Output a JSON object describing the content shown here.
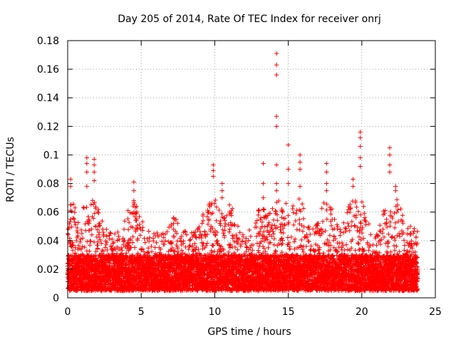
{
  "chart_data": {
    "type": "scatter",
    "title": "Day 205 of 2014, Rate Of TEC Index for receiver onrj",
    "xlabel": "GPS time / hours",
    "ylabel": "ROTI / TECUs",
    "xlim": [
      0,
      25
    ],
    "ylim": [
      0,
      0.18
    ],
    "xticks": [
      0,
      5,
      10,
      15,
      20,
      25
    ],
    "xtick_labels": [
      "0",
      "5",
      "10",
      "15",
      "20",
      "25"
    ],
    "yticks": [
      0,
      0.02,
      0.04,
      0.06,
      0.08,
      0.1,
      0.12,
      0.14,
      0.16,
      0.18
    ],
    "ytick_labels": [
      "0",
      "0.02",
      "0.04",
      "0.06",
      "0.08",
      "0.1",
      "0.12",
      "0.14",
      "0.16",
      "0.18"
    ],
    "grid": true,
    "marker": "+",
    "color": "#ff0000",
    "x_range_of_data": [
      0,
      23.8
    ],
    "series": [
      {
        "name": "ROTI",
        "background_band": {
          "x_start": 0.0,
          "x_end": 23.8,
          "typical_min": 0.005,
          "typical_max": 0.045
        },
        "peaks": [
          {
            "x": 0.2,
            "values": [
              0.083,
              0.078,
              0.065,
              0.055
            ]
          },
          {
            "x": 1.3,
            "values": [
              0.098,
              0.094,
              0.088,
              0.078
            ]
          },
          {
            "x": 1.8,
            "values": [
              0.097,
              0.093,
              0.088,
              0.082
            ]
          },
          {
            "x": 4.5,
            "values": [
              0.081,
              0.075,
              0.068,
              0.06
            ]
          },
          {
            "x": 7.2,
            "values": [
              0.056,
              0.052,
              0.048
            ]
          },
          {
            "x": 9.6,
            "values": [
              0.065,
              0.06,
              0.055
            ]
          },
          {
            "x": 9.9,
            "values": [
              0.093,
              0.089,
              0.085
            ]
          },
          {
            "x": 10.5,
            "values": [
              0.08,
              0.075,
              0.07
            ]
          },
          {
            "x": 11.0,
            "values": [
              0.065,
              0.06
            ]
          },
          {
            "x": 13.3,
            "values": [
              0.094,
              0.08,
              0.07
            ]
          },
          {
            "x": 14.2,
            "values": [
              0.171,
              0.163,
              0.156,
              0.127,
              0.12,
              0.093,
              0.08,
              0.075
            ]
          },
          {
            "x": 15.0,
            "values": [
              0.107,
              0.09,
              0.08
            ]
          },
          {
            "x": 15.8,
            "values": [
              0.1,
              0.095,
              0.09,
              0.078
            ]
          },
          {
            "x": 17.6,
            "values": [
              0.094,
              0.088,
              0.08,
              0.075
            ]
          },
          {
            "x": 19.4,
            "values": [
              0.083,
              0.078
            ]
          },
          {
            "x": 19.9,
            "values": [
              0.116,
              0.112,
              0.106,
              0.098,
              0.092
            ]
          },
          {
            "x": 21.9,
            "values": [
              0.105,
              0.1,
              0.093,
              0.088
            ]
          },
          {
            "x": 22.3,
            "values": [
              0.078,
              0.075
            ]
          },
          {
            "x": 23.3,
            "values": [
              0.05,
              0.045
            ]
          }
        ]
      }
    ]
  }
}
